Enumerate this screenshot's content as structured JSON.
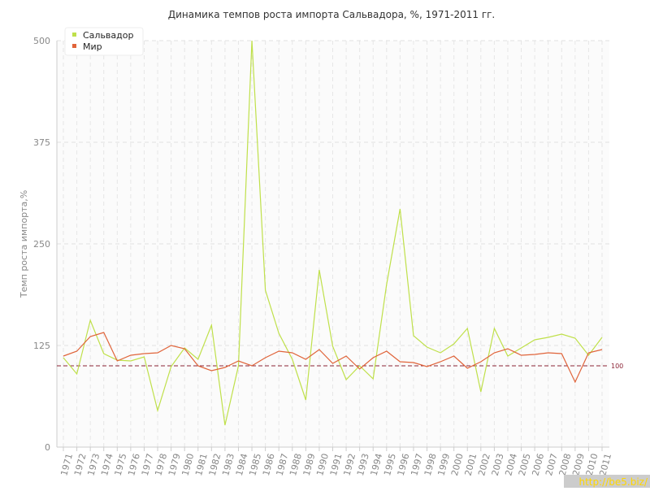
{
  "chart_data": {
    "type": "line",
    "title": "Динамика темпов роста импорта Сальвадора, %, 1971-2011 гг.",
    "y_label": "Темп роста импорта,%",
    "categories": [
      "1971",
      "1972",
      "1973",
      "1974",
      "1975",
      "1976",
      "1977",
      "1978",
      "1979",
      "1980",
      "1981",
      "1982",
      "1983",
      "1984",
      "1985",
      "1986",
      "1987",
      "1988",
      "1989",
      "1990",
      "1991",
      "1992",
      "1993",
      "1994",
      "1995",
      "1996",
      "1997",
      "1998",
      "1999",
      "2000",
      "2001",
      "2002",
      "2003",
      "2004",
      "2005",
      "2006",
      "2007",
      "2008",
      "2009",
      "2010",
      "2011"
    ],
    "series": [
      {
        "name": "Сальвадор",
        "color": "#bfe04a",
        "values": [
          110,
          90,
          156,
          115,
          107,
          106,
          111,
          45,
          99,
          122,
          108,
          150,
          27,
          100,
          500,
          193,
          140,
          108,
          58,
          218,
          124,
          83,
          100,
          84,
          200,
          293,
          137,
          123,
          116,
          127,
          146,
          68,
          146,
          112,
          122,
          132,
          135,
          139,
          134,
          113,
          135
        ]
      },
      {
        "name": "Мир",
        "color": "#e0643a",
        "values": [
          112,
          118,
          136,
          141,
          106,
          113,
          115,
          116,
          125,
          121,
          100,
          94,
          98,
          106,
          100,
          110,
          118,
          116,
          108,
          120,
          103,
          112,
          96,
          110,
          118,
          105,
          104,
          99,
          105,
          112,
          97,
          105,
          116,
          121,
          113,
          114,
          116,
          115,
          80,
          116,
          120
        ]
      }
    ],
    "ylim": [
      0,
      500
    ],
    "yticks": [
      0,
      125,
      250,
      375,
      500
    ],
    "grid": true,
    "reference_line": 100,
    "reference_color": "#8b2335",
    "legend": "top-left",
    "watermark": "http://be5.biz/"
  }
}
